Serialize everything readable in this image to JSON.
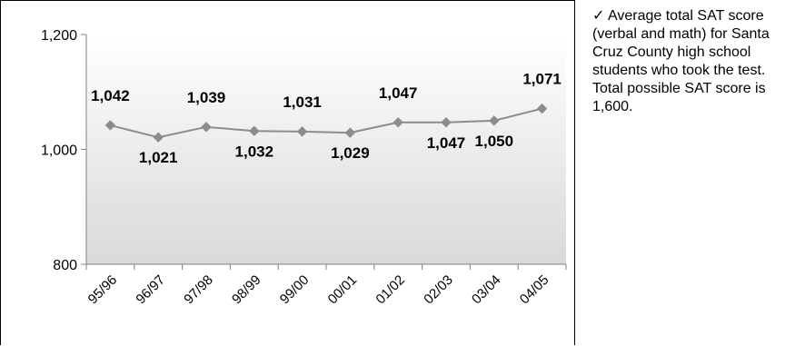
{
  "chart_data": {
    "type": "line",
    "categories": [
      "95/96",
      "96/97",
      "97/98",
      "98/99",
      "99/00",
      "00/01",
      "01/02",
      "02/03",
      "03/04",
      "04/05"
    ],
    "series": [
      {
        "values": [
          1042,
          1021,
          1039,
          1032,
          1031,
          1029,
          1047,
          1047,
          1050,
          1071
        ]
      }
    ],
    "data_labels": [
      "1,042",
      "1,021",
      "1,039",
      "1,032",
      "1,031",
      "1,029",
      "1,047",
      "1,047",
      "1,050",
      "1,071"
    ],
    "label_side": [
      "above",
      "below",
      "above",
      "below",
      "above",
      "below",
      "above",
      "below",
      "below",
      "above"
    ],
    "y_ticks": [
      800,
      1000,
      1200
    ],
    "y_tick_labels": [
      "800",
      "1,000",
      "1,200"
    ],
    "ylim": [
      800,
      1200
    ],
    "title": "",
    "xlabel": "",
    "ylabel": "",
    "grid": false,
    "legend": "none",
    "colors": {
      "line": "#8c8c8c",
      "marker": "#8c8c8c",
      "gradient_top": "#ffffff",
      "gradient_bottom": "#d9d9d9",
      "axis": "#808080"
    }
  },
  "caption": {
    "check_icon": "check-icon",
    "line1": "✓ Average total SAT score (verbal and math) for Santa Cruz County high school students who took the test.",
    "line2": "Total possible SAT score is 1,600."
  }
}
